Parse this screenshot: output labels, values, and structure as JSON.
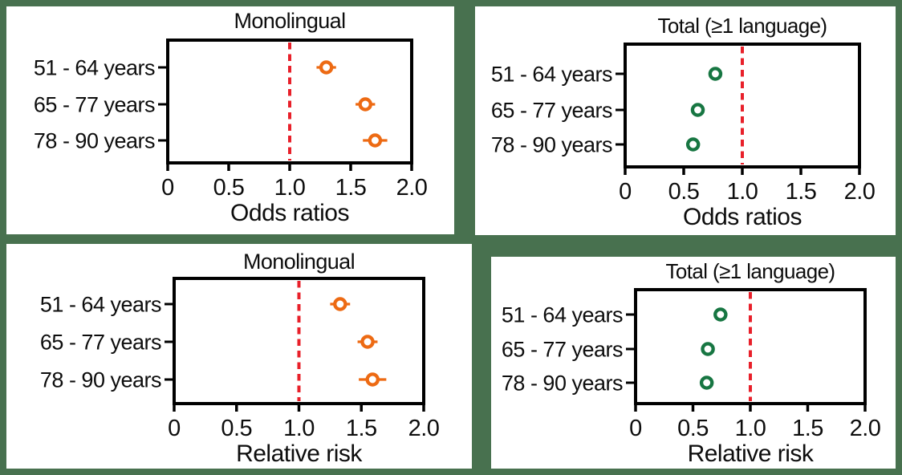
{
  "figure": {
    "background_color": "#48714F",
    "panel_background": "#FFFFFF",
    "frame_color": "#000000",
    "reference_line_color": "#E8202A",
    "monolingual_color": "#ED6A13",
    "total_color": "#177642"
  },
  "categories": [
    "51 - 64 years",
    "65 - 77 years",
    "78 - 90 years"
  ],
  "x_tick_labels": [
    "0",
    "0.5",
    "1.0",
    "1.5",
    "2.0"
  ],
  "chart_data": [
    {
      "id": "or-monolingual",
      "type": "scatter",
      "title": "Monolingual",
      "xlabel": "Odds ratios",
      "categories": [
        "51 - 64 years",
        "65 - 77 years",
        "78 - 90 years"
      ],
      "values": [
        1.3,
        1.62,
        1.7
      ],
      "ci_low": [
        1.22,
        1.54,
        1.6
      ],
      "ci_high": [
        1.38,
        1.7,
        1.8
      ],
      "marker": "open-circle",
      "marker_color": "#ED6A13",
      "xlim": [
        0,
        2.0
      ],
      "xticks": [
        0,
        0.5,
        1.0,
        1.5,
        2.0
      ],
      "x_tick_labels": [
        "0",
        "0.5",
        "1.0",
        "1.5",
        "2.0"
      ],
      "reference_x": 1.0,
      "reference_style": "dashed-red",
      "grid": false,
      "legend": "none"
    },
    {
      "id": "or-total",
      "type": "scatter",
      "title": "Total (≥1 language)",
      "xlabel": "Odds ratios",
      "categories": [
        "51 - 64 years",
        "65 - 77 years",
        "78 - 90 years"
      ],
      "values": [
        0.77,
        0.62,
        0.58
      ],
      "ci_low": [
        0.72,
        0.57,
        0.54
      ],
      "ci_high": [
        0.82,
        0.67,
        0.62
      ],
      "marker": "open-circle",
      "marker_color": "#177642",
      "xlim": [
        0,
        2.0
      ],
      "xticks": [
        0,
        0.5,
        1.0,
        1.5,
        2.0
      ],
      "x_tick_labels": [
        "0",
        "0.5",
        "1.0",
        "1.5",
        "2.0"
      ],
      "reference_x": 1.0,
      "reference_style": "dashed-red",
      "grid": false,
      "legend": "none"
    },
    {
      "id": "rr-monolingual",
      "type": "scatter",
      "title": "Monolingual",
      "xlabel": "Relative risk",
      "categories": [
        "51 - 64 years",
        "65 - 77 years",
        "78 - 90 years"
      ],
      "values": [
        1.33,
        1.55,
        1.59
      ],
      "ci_low": [
        1.25,
        1.47,
        1.48
      ],
      "ci_high": [
        1.41,
        1.63,
        1.7
      ],
      "marker": "open-circle",
      "marker_color": "#ED6A13",
      "xlim": [
        0,
        2.0
      ],
      "xticks": [
        0,
        0.5,
        1.0,
        1.5,
        2.0
      ],
      "x_tick_labels": [
        "0",
        "0.5",
        "1.0",
        "1.5",
        "2.0"
      ],
      "reference_x": 1.0,
      "reference_style": "dashed-red",
      "grid": false,
      "legend": "none"
    },
    {
      "id": "rr-total",
      "type": "scatter",
      "title": "Total (≥1 language)",
      "xlabel": "Relative risk",
      "categories": [
        "51 - 64 years",
        "65 - 77 years",
        "78 - 90 years"
      ],
      "values": [
        0.74,
        0.63,
        0.62
      ],
      "ci_low": [
        0.7,
        0.59,
        0.58
      ],
      "ci_high": [
        0.78,
        0.67,
        0.66
      ],
      "marker": "open-circle",
      "marker_color": "#177642",
      "xlim": [
        0,
        2.0
      ],
      "xticks": [
        0,
        0.5,
        1.0,
        1.5,
        2.0
      ],
      "x_tick_labels": [
        "0",
        "0.5",
        "1.0",
        "1.5",
        "2.0"
      ],
      "reference_x": 1.0,
      "reference_style": "dashed-red",
      "grid": false,
      "legend": "none"
    }
  ]
}
